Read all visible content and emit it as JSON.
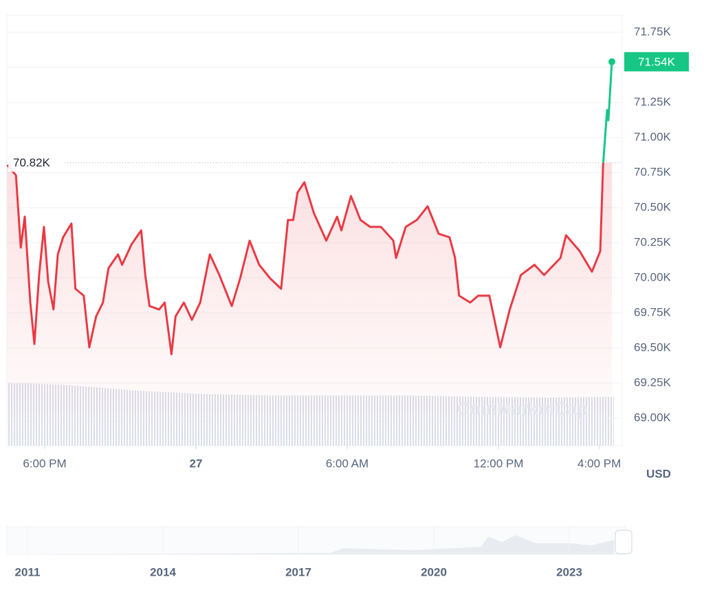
{
  "chart_data": {
    "type": "line",
    "x": [
      16.51,
      16.86,
      17.05,
      17.21,
      17.43,
      17.59,
      17.78,
      17.97,
      18.14,
      18.35,
      18.52,
      18.73,
      19.06,
      19.22,
      19.55,
      19.77,
      20.04,
      20.31,
      20.53,
      20.91,
      21.07,
      21.45,
      21.83,
      21.99,
      22.16,
      22.54,
      22.76,
      23.03,
      23.19,
      23.52,
      23.84,
      24.17,
      24.55,
      24.93,
      25.42,
      25.75,
      26.13,
      26.51,
      26.95,
      27.38,
      27.65,
      27.86,
      28.03,
      28.3,
      28.68,
      29.17,
      29.6,
      29.77,
      30.15,
      30.53,
      30.91,
      31.34,
      31.83,
      31.94,
      32.32,
      32.76,
      33.19,
      33.63,
      34.06,
      34.28,
      34.44,
      34.88,
      35.2,
      35.64,
      36.07,
      36.45,
      36.89,
      37.43,
      37.81,
      38.46,
      38.68,
      39.22,
      39.71,
      40.04,
      40.15,
      40.31,
      40.36,
      40.5
    ],
    "values": [
      70804,
      70731,
      70216,
      70436,
      69824,
      69529,
      70020,
      70363,
      69971,
      69775,
      70167,
      70289,
      70387,
      69922,
      69873,
      69505,
      69725,
      69824,
      70069,
      70167,
      70093,
      70240,
      70338,
      70020,
      69799,
      69775,
      69824,
      69456,
      69725,
      69824,
      69701,
      69824,
      70167,
      70020,
      69799,
      69995,
      70265,
      70093,
      69995,
      69922,
      70412,
      70412,
      70608,
      70681,
      70461,
      70265,
      70436,
      70338,
      70583,
      70412,
      70363,
      70363,
      70265,
      70142,
      70363,
      70412,
      70510,
      70314,
      70289,
      70142,
      69873,
      69824,
      69873,
      69873,
      69505,
      69775,
      70020,
      70093,
      70020,
      70142,
      70304,
      70191,
      70044,
      70191,
      70804,
      71196,
      71123,
      71540
    ],
    "value_labels": [
      null,
      null,
      null,
      null,
      null,
      null,
      null,
      null,
      null,
      null,
      null,
      null,
      null,
      null,
      null,
      null,
      null,
      null,
      null,
      null,
      null,
      null,
      null,
      null,
      null,
      null,
      null,
      null,
      null,
      null,
      null,
      null,
      null,
      null,
      null,
      null,
      null,
      null,
      null,
      null,
      null,
      null,
      null,
      null,
      null,
      null,
      null,
      null,
      null,
      null,
      null,
      null,
      null,
      null,
      null,
      null,
      null,
      null,
      null,
      null,
      null,
      null,
      null,
      null,
      null,
      null,
      null,
      null,
      null,
      null,
      null,
      null,
      null,
      null,
      null,
      null,
      null,
      "71.54K"
    ],
    "reference": {
      "value": 70820,
      "label": "70.82K"
    },
    "down_color": "#ea3943",
    "up_color": "#16c784",
    "xlim": [
      16.5,
      40.5
    ],
    "xticks": [
      {
        "value": 18,
        "label": "6:00 PM"
      },
      {
        "value": 24,
        "label": "27"
      },
      {
        "value": 30,
        "label": "6:00 AM"
      },
      {
        "value": 36,
        "label": "12:00 PM"
      },
      {
        "value": 40,
        "label": "4:00 PM"
      }
    ],
    "ylim": [
      68804,
      71882
    ],
    "yticks": [
      {
        "value": 69000,
        "label": "69.00K"
      },
      {
        "value": 69250,
        "label": "69.25K"
      },
      {
        "value": 69500,
        "label": "69.50K"
      },
      {
        "value": 69750,
        "label": "69.75K"
      },
      {
        "value": 70000,
        "label": "70.00K"
      },
      {
        "value": 70250,
        "label": "70.25K"
      },
      {
        "value": 70500,
        "label": "70.50K"
      },
      {
        "value": 70750,
        "label": "70.75K"
      },
      {
        "value": 71000,
        "label": "71.00K"
      },
      {
        "value": 71250,
        "label": "71.25K"
      },
      {
        "value": 71500,
        "label": "71.50K"
      },
      {
        "value": 71750,
        "label": "71.75K"
      }
    ],
    "ylabel": "USD",
    "grid": true,
    "watermark": "CoinMarketCap",
    "navigator": {
      "labels": [
        "2011",
        "2014",
        "2017",
        "2020",
        "2023"
      ]
    }
  }
}
